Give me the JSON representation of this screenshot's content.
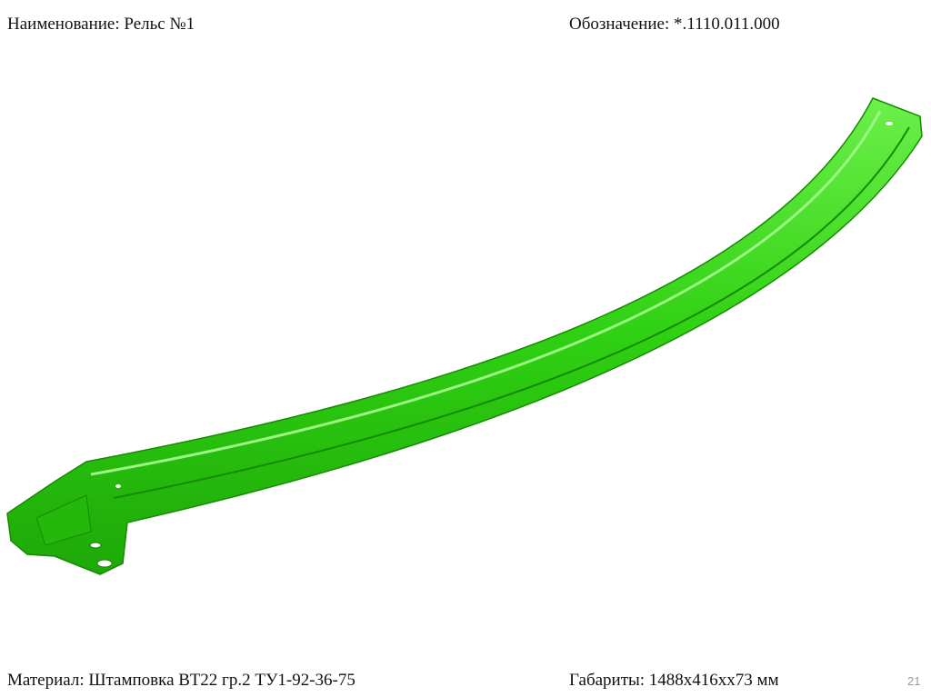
{
  "header": {
    "name": "Наименование: Рельс №1",
    "designation": "Обозначение: *.1110.011.000"
  },
  "footer": {
    "material": "Материал: Штамповка ВТ22 гр.2 ТУ1-92-36-75",
    "dimensions": "Габариты: 1488х416хх73 мм",
    "page": "21"
  }
}
